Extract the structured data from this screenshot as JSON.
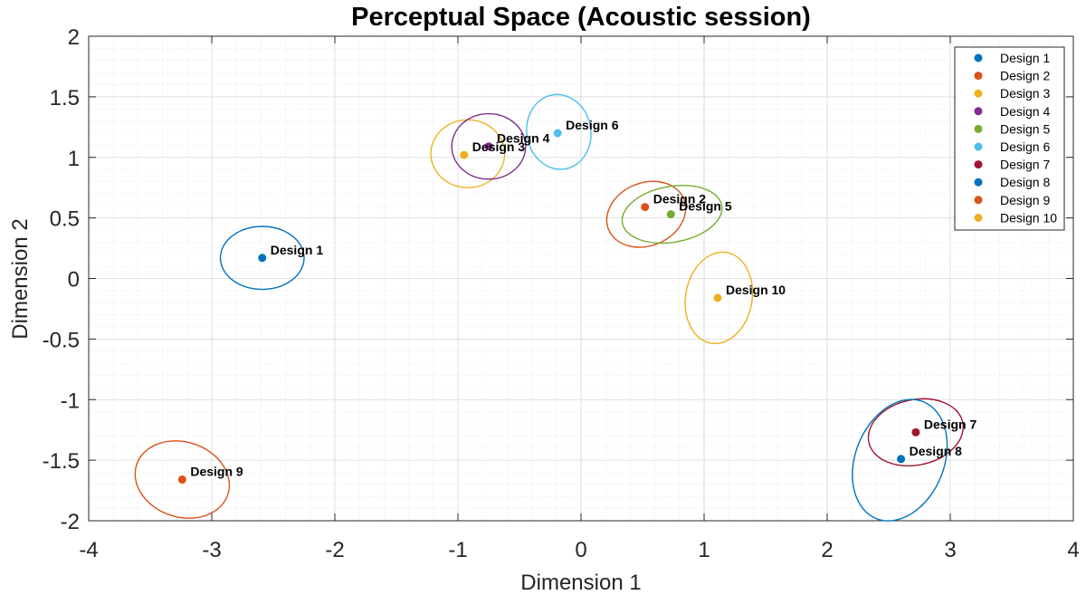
{
  "chart_data": {
    "type": "scatter",
    "title": "Perceptual Space (Acoustic session)",
    "xlabel": "Dimension 1",
    "ylabel": "Dimension 2",
    "xlim": [
      -4,
      4
    ],
    "ylim": [
      -2,
      2
    ],
    "xticks": [
      "-4",
      "-3",
      "-2",
      "-1",
      "0",
      "1",
      "2",
      "3",
      "4"
    ],
    "yticks": [
      "2",
      "1.5",
      "1",
      "0.5",
      "0",
      "-0.5",
      "-1",
      "-1.5",
      "-2"
    ],
    "grid": true,
    "minor_grid": true,
    "legend_position": "top-right",
    "series": [
      {
        "name": "Design 1",
        "color": "#0072BD",
        "label": "Design 1",
        "x": -2.59,
        "y": 0.17,
        "ellipse": {
          "cx": -2.59,
          "cy": 0.17,
          "rx": 0.34,
          "ry": 0.26,
          "angle": 0
        }
      },
      {
        "name": "Design 2",
        "color": "#D95319",
        "label": "Design 2",
        "x": 0.52,
        "y": 0.59,
        "ellipse": {
          "cx": 0.53,
          "cy": 0.53,
          "rx": 0.33,
          "ry": 0.26,
          "angle": -22
        }
      },
      {
        "name": "Design 3",
        "color": "#EDB120",
        "label": "Design 3",
        "x": -0.95,
        "y": 1.02,
        "ellipse": {
          "cx": -0.92,
          "cy": 1.03,
          "rx": 0.3,
          "ry": 0.28,
          "angle": 0
        }
      },
      {
        "name": "Design 4",
        "color": "#7E2F8E",
        "label": "Design 4",
        "x": -0.75,
        "y": 1.09,
        "ellipse": {
          "cx": -0.75,
          "cy": 1.09,
          "rx": 0.3,
          "ry": 0.27,
          "angle": 0
        }
      },
      {
        "name": "Design 5",
        "color": "#77AC30",
        "label": "Design 5",
        "x": 0.73,
        "y": 0.53,
        "ellipse": {
          "cx": 0.74,
          "cy": 0.53,
          "rx": 0.41,
          "ry": 0.23,
          "angle": -10
        }
      },
      {
        "name": "Design 6",
        "color": "#4DBEEE",
        "label": "Design 6",
        "x": -0.19,
        "y": 1.2,
        "ellipse": {
          "cx": -0.18,
          "cy": 1.21,
          "rx": 0.26,
          "ry": 0.31,
          "angle": -10
        }
      },
      {
        "name": "Design 7",
        "color": "#A2142F",
        "label": "Design 7",
        "x": 2.72,
        "y": -1.27,
        "ellipse": {
          "cx": 2.72,
          "cy": -1.27,
          "rx": 0.39,
          "ry": 0.27,
          "angle": -12
        }
      },
      {
        "name": "Design 8",
        "color": "#0072BD",
        "label": "Design 8",
        "x": 2.6,
        "y": -1.49,
        "ellipse": {
          "cx": 2.59,
          "cy": -1.5,
          "rx": 0.36,
          "ry": 0.52,
          "angle": 22
        }
      },
      {
        "name": "Design 9",
        "color": "#D95319",
        "label": "Design 9",
        "x": -3.24,
        "y": -1.66,
        "ellipse": {
          "cx": -3.24,
          "cy": -1.66,
          "rx": 0.39,
          "ry": 0.31,
          "angle": 18
        }
      },
      {
        "name": "Design 10",
        "color": "#EDB120",
        "label": "Design 10",
        "x": 1.11,
        "y": -0.16,
        "ellipse": {
          "cx": 1.12,
          "cy": -0.16,
          "rx": 0.27,
          "ry": 0.38,
          "angle": 10
        }
      }
    ]
  }
}
